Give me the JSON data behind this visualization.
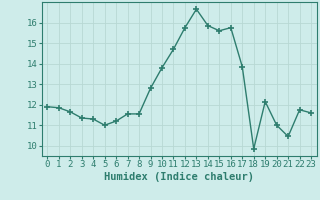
{
  "x": [
    0,
    1,
    2,
    3,
    4,
    5,
    6,
    7,
    8,
    9,
    10,
    11,
    12,
    13,
    14,
    15,
    16,
    17,
    18,
    19,
    20,
    21,
    22,
    23
  ],
  "y": [
    11.9,
    11.85,
    11.65,
    11.35,
    11.3,
    11.0,
    11.2,
    11.55,
    11.55,
    12.8,
    13.8,
    14.7,
    15.75,
    16.65,
    15.85,
    15.6,
    15.75,
    13.85,
    9.85,
    12.15,
    11.0,
    10.45,
    11.75,
    11.6
  ],
  "line_color": "#2e7d6e",
  "marker": "+",
  "markersize": 4,
  "markeredgewidth": 1.2,
  "linewidth": 1.0,
  "bg_color": "#ceecea",
  "grid_color": "#b8d8d4",
  "xlabel": "Humidex (Indice chaleur)",
  "ylabel_ticks": [
    10,
    11,
    12,
    13,
    14,
    15,
    16
  ],
  "xlim": [
    -0.5,
    23.5
  ],
  "ylim": [
    9.5,
    17.0
  ],
  "xtick_labels": [
    "0",
    "1",
    "2",
    "3",
    "4",
    "5",
    "6",
    "7",
    "8",
    "9",
    "10",
    "11",
    "12",
    "13",
    "14",
    "15",
    "16",
    "17",
    "18",
    "19",
    "20",
    "21",
    "22",
    "23"
  ],
  "label_fontsize": 7.5,
  "tick_fontsize": 6.5
}
